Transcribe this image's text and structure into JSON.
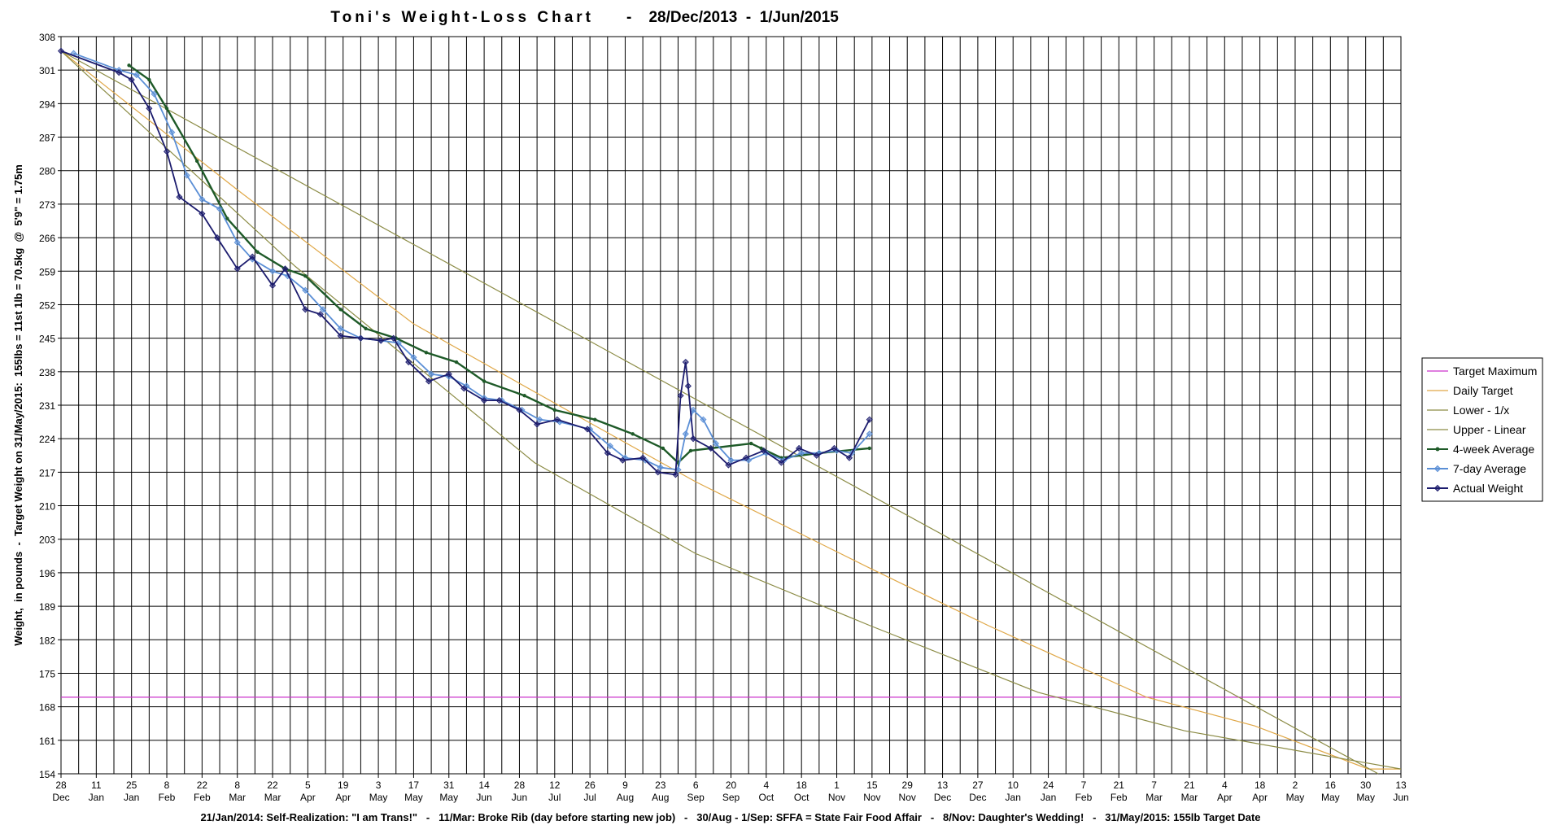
{
  "chart_data": {
    "type": "line",
    "title": "Toni's Weight-Loss Chart",
    "date_range": "-    28/Dec/2013  -  1/Jun/2015",
    "ylabel": "Weight,  in pounds  -  Target Weight on 31/May/2015:  155lbs = 11st 1lb = 70.5kg  @  5'9\" = 1.75m",
    "footnote": "21/Jan/2014: Self-Realization: \"I am Trans!\"   -   11/Mar: Broke Rib (day before starting new job)   -   30/Aug - 1/Sep: SFFA = State Fair Food Affair   -   8/Nov: Daughter's Wedding!   -   31/May/2015: 155lb Target Date",
    "xlim": [
      0,
      532
    ],
    "xticks": [
      {
        "value": 0,
        "label": "28"
      },
      {
        "value": 14,
        "label": "11"
      },
      {
        "value": 28,
        "label": "25"
      },
      {
        "value": 42,
        "label": "8"
      },
      {
        "value": 56,
        "label": "22"
      },
      {
        "value": 70,
        "label": "8"
      },
      {
        "value": 84,
        "label": "22"
      },
      {
        "value": 98,
        "label": "5"
      },
      {
        "value": 112,
        "label": "19"
      },
      {
        "value": 126,
        "label": "3"
      },
      {
        "value": 140,
        "label": "17"
      },
      {
        "value": 154,
        "label": "31"
      },
      {
        "value": 168,
        "label": "14"
      },
      {
        "value": 182,
        "label": "28"
      },
      {
        "value": 196,
        "label": "12"
      },
      {
        "value": 210,
        "label": "26"
      },
      {
        "value": 224,
        "label": "9"
      },
      {
        "value": 238,
        "label": "23"
      },
      {
        "value": 252,
        "label": "6"
      },
      {
        "value": 266,
        "label": "20"
      },
      {
        "value": 280,
        "label": "4"
      },
      {
        "value": 294,
        "label": "18"
      },
      {
        "value": 308,
        "label": "1"
      },
      {
        "value": 322,
        "label": "15"
      },
      {
        "value": 336,
        "label": "29"
      },
      {
        "value": 350,
        "label": "13"
      },
      {
        "value": 364,
        "label": "27"
      },
      {
        "value": 378,
        "label": "10"
      },
      {
        "value": 392,
        "label": "24"
      },
      {
        "value": 406,
        "label": "7"
      },
      {
        "value": 420,
        "label": "21"
      },
      {
        "value": 434,
        "label": "7"
      },
      {
        "value": 448,
        "label": "21"
      },
      {
        "value": 462,
        "label": "4"
      },
      {
        "value": 476,
        "label": "18"
      },
      {
        "value": 490,
        "label": "2"
      },
      {
        "value": 504,
        "label": "16"
      },
      {
        "value": 518,
        "label": "30"
      },
      {
        "value": 532,
        "label": "13"
      }
    ],
    "xtick_months": [
      "Dec",
      "Jan",
      "Jan",
      "Feb",
      "Feb",
      "Mar",
      "Mar",
      "Apr",
      "Apr",
      "May",
      "May",
      "May",
      "Jun",
      "Jun",
      "Jul",
      "Jul",
      "Aug",
      "Aug",
      "Sep",
      "Sep",
      "Oct",
      "Oct",
      "Nov",
      "Nov",
      "Nov",
      "Dec",
      "Dec",
      "Jan",
      "Jan",
      "Feb",
      "Feb",
      "Mar",
      "Mar",
      "Apr",
      "Apr",
      "May",
      "May",
      "May",
      "Jun"
    ],
    "minor_grid_step": 7,
    "ylim": [
      154,
      308
    ],
    "yticks": [
      154,
      161,
      168,
      175,
      182,
      189,
      196,
      203,
      210,
      217,
      224,
      231,
      238,
      245,
      252,
      259,
      266,
      273,
      280,
      287,
      294,
      301,
      308
    ],
    "grid": true,
    "legend": "right",
    "series": [
      {
        "name": "Target Maximum",
        "color": "#cc33cc",
        "x": [
          0,
          532
        ],
        "values": [
          170,
          170
        ]
      },
      {
        "name": "Daily Target",
        "color": "#e0a848",
        "x": [
          0,
          70,
          140,
          211,
          252,
          321,
          368,
          431,
          474,
          519,
          532
        ],
        "values": [
          305,
          276,
          248,
          227,
          215,
          197,
          185,
          170,
          164,
          155,
          155
        ]
      },
      {
        "name": "Lower - 1/x",
        "color": "#8c8c46",
        "x": [
          0,
          93,
          188,
          252,
          321,
          388,
          446,
          532
        ],
        "values": [
          305,
          260,
          219,
          200,
          185,
          171,
          163,
          155
        ]
      },
      {
        "name": "Upper - Linear",
        "color": "#8c8c46",
        "x": [
          0,
          523
        ],
        "values": [
          305,
          154
        ]
      },
      {
        "name": "4-week Average",
        "color": "#1e5a28",
        "marker": "circle",
        "x": [
          27,
          35,
          42,
          54,
          66,
          78,
          89,
          97,
          111,
          121,
          133,
          145,
          157,
          168,
          184,
          196,
          212,
          227,
          239,
          245,
          250,
          258,
          274,
          278,
          286,
          301,
          321
        ],
        "values": [
          302,
          299,
          293,
          282,
          270,
          263,
          259.5,
          258,
          251,
          247,
          245,
          242,
          240,
          236,
          233,
          230,
          228,
          225,
          222,
          219,
          221.5,
          222,
          223,
          222,
          220,
          221,
          222
        ]
      },
      {
        "name": "7-day Average",
        "color": "#5b8fd6",
        "marker": "diamond",
        "x": [
          5,
          23,
          30,
          37,
          44,
          50,
          56,
          63,
          70,
          76,
          84,
          90,
          97,
          104,
          111,
          119,
          127,
          134,
          140,
          147,
          154,
          161,
          168,
          175,
          183,
          190,
          198,
          210,
          218,
          224,
          232,
          238,
          245,
          248,
          251,
          255,
          260,
          266,
          273,
          280,
          287,
          294,
          301,
          308,
          314,
          321
        ],
        "values": [
          304.5,
          301,
          300,
          296,
          288,
          279,
          274,
          272,
          265,
          261.5,
          259,
          258,
          255,
          251,
          247,
          245,
          244.5,
          244,
          241,
          237.5,
          237,
          235,
          232.5,
          232,
          230,
          228,
          227.5,
          226,
          222.5,
          220,
          219.5,
          218,
          217.5,
          225,
          230,
          228,
          223,
          219.5,
          219.5,
          221,
          219.5,
          221,
          221,
          221.5,
          221,
          225
        ]
      },
      {
        "name": "Actual Weight",
        "color": "#1c1c6e",
        "marker": "diamond",
        "x": [
          0,
          23,
          28,
          35,
          42,
          47,
          56,
          62,
          70,
          76,
          84,
          89,
          97,
          103,
          111,
          119,
          127,
          132,
          138,
          146,
          154,
          160,
          168,
          174,
          182,
          189,
          197,
          209,
          217,
          223,
          231,
          237,
          244,
          246,
          248,
          249,
          251,
          258,
          265,
          272,
          279,
          286,
          293,
          300,
          307,
          313,
          321
        ],
        "values": [
          305,
          300.5,
          299,
          293,
          284,
          274.5,
          271,
          266,
          259.5,
          262,
          256,
          259.5,
          251,
          250,
          245.5,
          245,
          244.5,
          245,
          240,
          236,
          237.5,
          234.5,
          232,
          232,
          230,
          227,
          228,
          226,
          221,
          219.5,
          220,
          217,
          216.5,
          233,
          240,
          235,
          224,
          222,
          218.5,
          220,
          221.5,
          219,
          222,
          220.5,
          222,
          220,
          228
        ]
      }
    ]
  }
}
